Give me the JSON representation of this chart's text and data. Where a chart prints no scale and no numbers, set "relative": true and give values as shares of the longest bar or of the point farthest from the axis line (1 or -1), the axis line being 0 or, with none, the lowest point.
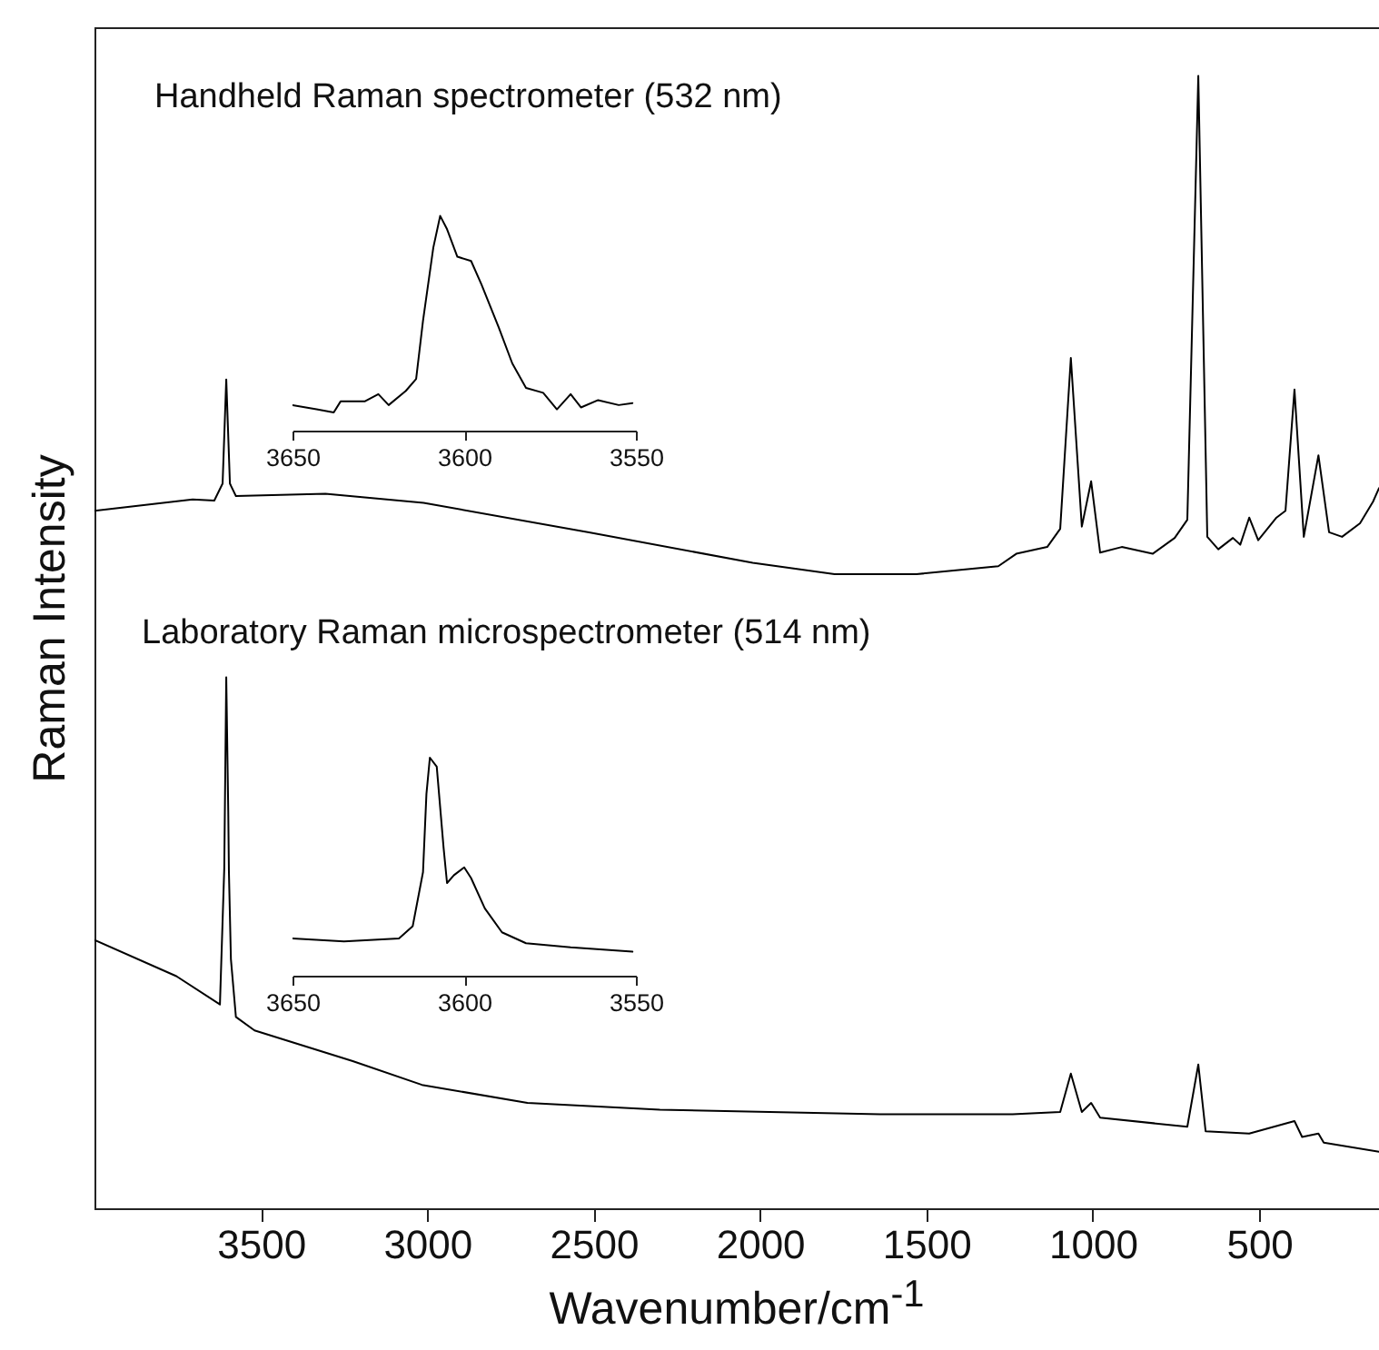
{
  "chart_data": [
    {
      "type": "line",
      "xlabel": "Wavenumber/cm$^{-1}$",
      "ylabel": "Raman Intensity",
      "xlim": [
        4000,
        140
      ],
      "xticks": [
        3500,
        3000,
        2500,
        2000,
        1500,
        1000,
        500
      ],
      "relative": true,
      "tick_labels": "x",
      "annotations": [
        "Handheld Raman spectrometer (532 nm)",
        "Laboratory Raman microspectrometer (514 nm)"
      ],
      "series": [
        {
          "color": "#000000",
          "x": [
            4000,
            3705,
            3640,
            3615,
            3604,
            3593,
            3575,
            3306,
            3011,
            2514,
            2022,
            1776,
            1530,
            1284,
            1230,
            1137,
            1098,
            1066,
            1033,
            1005,
            978,
            913,
            820,
            754,
            716,
            683,
            656,
            623,
            579,
            557,
            530,
            503,
            448,
            421,
            394,
            366,
            322,
            290,
            251,
            197,
            158,
            140
          ],
          "values": [
            0.616,
            0.626,
            0.625,
            0.64,
            0.732,
            0.64,
            0.629,
            0.631,
            0.623,
            0.597,
            0.57,
            0.56,
            0.56,
            0.567,
            0.578,
            0.584,
            0.6,
            0.751,
            0.602,
            0.642,
            0.579,
            0.584,
            0.578,
            0.592,
            0.608,
            1,
            0.593,
            0.582,
            0.592,
            0.586,
            0.61,
            0.59,
            0.61,
            0.616,
            0.723,
            0.593,
            0.665,
            0.597,
            0.593,
            0.605,
            0.624,
            0.636
          ]
        },
        {
          "color": "#000000",
          "x": [
            4000,
            3754,
            3623,
            3610,
            3604,
            3598,
            3596,
            3590,
            3575,
            3519,
            3224,
            3016,
            2699,
            2301,
            1639,
            1241,
            1098,
            1066,
            1033,
            1005,
            978,
            716,
            683,
            661,
            530,
            394,
            371,
            322,
            306,
            140
          ],
          "values": [
            0.237,
            0.205,
            0.18,
            0.3,
            0.469,
            0.35,
            0.297,
            0.22,
            0.169,
            0.157,
            0.13,
            0.109,
            0.093,
            0.087,
            0.083,
            0.083,
            0.085,
            0.119,
            0.085,
            0.093,
            0.08,
            0.072,
            0.127,
            0.068,
            0.066,
            0.077,
            0.063,
            0.066,
            0.058,
            0.05
          ]
        }
      ]
    },
    {
      "type": "line",
      "xlim": [
        3650,
        3550
      ],
      "xticks": [
        3650,
        3600,
        3550
      ],
      "relative": true,
      "tick_labels": "x",
      "series": [
        {
          "color": "#000000",
          "x": [
            3650,
            3643,
            3638,
            3636,
            3629,
            3625,
            3622,
            3617,
            3614,
            3612,
            3609,
            3607,
            3605,
            3602,
            3598,
            3595,
            3590,
            3586,
            3582,
            3577,
            3573,
            3569,
            3566,
            3561,
            3555,
            3551
          ],
          "values": [
            0.119,
            0.099,
            0.085,
            0.136,
            0.136,
            0.17,
            0.119,
            0.185,
            0.241,
            0.511,
            0.852,
            1,
            0.938,
            0.81,
            0.79,
            0.682,
            0.483,
            0.313,
            0.199,
            0.176,
            0.099,
            0.17,
            0.108,
            0.142,
            0.119,
            0.128
          ]
        }
      ]
    },
    {
      "type": "line",
      "xlim": [
        3650,
        3550
      ],
      "xticks": [
        3650,
        3600,
        3550
      ],
      "relative": true,
      "tick_labels": "x",
      "series": [
        {
          "color": "#000000",
          "x": [
            3650,
            3635,
            3619,
            3615,
            3612,
            3611,
            3610,
            3608,
            3606,
            3605,
            3603,
            3600,
            3598,
            3594,
            3589,
            3582,
            3569,
            3551
          ],
          "values": [
            0.171,
            0.157,
            0.171,
            0.227,
            0.475,
            0.834,
            1,
            0.959,
            0.586,
            0.425,
            0.461,
            0.497,
            0.448,
            0.309,
            0.199,
            0.149,
            0.13,
            0.11
          ]
        }
      ]
    }
  ]
}
